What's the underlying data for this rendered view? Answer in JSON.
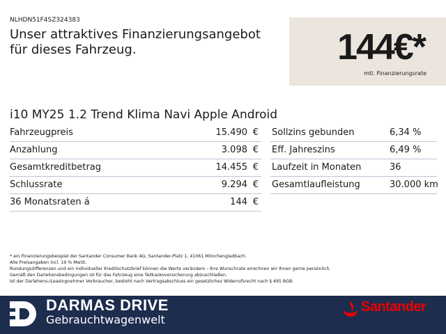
{
  "header": {
    "vin": "NLHDN51F4SZ324383",
    "title_lines": [
      "Unser attraktives Finanzierungsangebot",
      "für dieses Fahrzeug."
    ]
  },
  "rate": {
    "amount": "144€*",
    "caption": "mtl. Finanzierungsrate"
  },
  "model": "i10 MY25 1.2 Trend Klima Navi Apple Android",
  "left_table": {
    "rows": [
      [
        "Fahrzeugpreis",
        "15.490",
        "€"
      ],
      [
        "Anzahlung",
        "3.098",
        "€"
      ],
      [
        "Gesamtkreditbetrag",
        "14.455",
        "€"
      ],
      [
        "Schlussrate",
        "9.294",
        "€"
      ],
      [
        "36 Monatsraten á",
        "144",
        "€"
      ]
    ]
  },
  "right_table": {
    "rows": [
      [
        "Sollzins gebunden",
        "6,34 %"
      ],
      [
        "Eff. Jahreszins",
        "6,49 %"
      ],
      [
        "Laufzeit in Monaten",
        "36"
      ],
      [
        "Gesamtlaufleistung",
        "30.000 km"
      ]
    ]
  },
  "footnotes": [
    "* ein Finanzierungsbeispiel der Santander Consumer Bank AG, Santander-Platz 1, 41061 Mönchengladbach.",
    "Alle Preisangaben incl. 19 % MwSt.",
    "Rundungsdifferenzen und ein individueller Kreditschutzbrief können die Werte verändern - Ihre Wunschrate errechnen wir Ihnen gerne persönlich.",
    "Gemäß den Darlehensbedingungen ist für das Fahrzeug eine Teilkaskoversicherung abzuschließen.",
    "Ist der Darlehens-/Leasingnehmer Verbraucher, besteht nach Vertragsabschluss ein gesetzliches Widerrufsrecht nach § 495 BGB."
  ],
  "footer": {
    "brand": "DARMAS DRIVE",
    "subtitle": "Gebrauchtwagenwelt",
    "bank": "Santander"
  }
}
